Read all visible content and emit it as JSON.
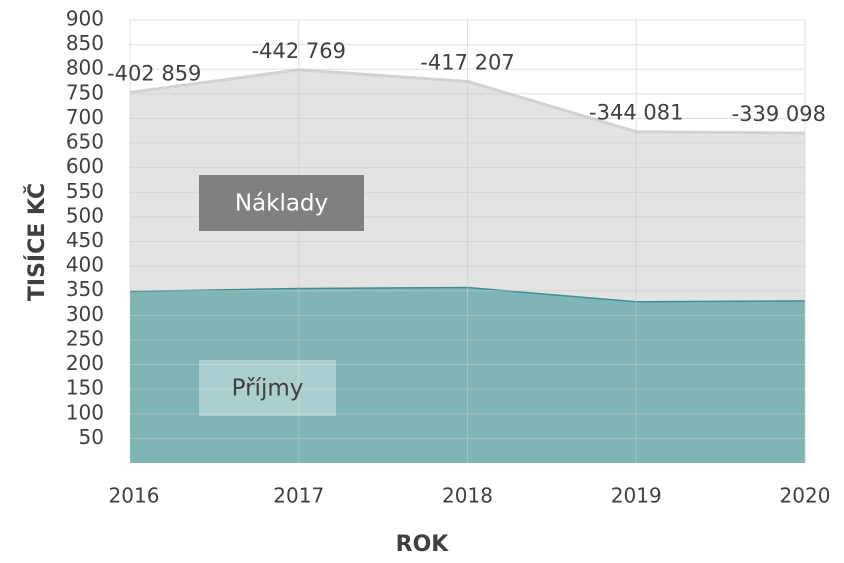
{
  "chart_data": {
    "type": "area",
    "stacked": true,
    "x_label": "ROK",
    "y_label": "TISÍCE KČ",
    "categories": [
      "2016",
      "2017",
      "2018",
      "2019",
      "2020"
    ],
    "series": [
      {
        "name": "Příjmy",
        "color": "#7fb5b5",
        "line_color": "#3f8f8f",
        "values": [
          350,
          356,
          358,
          329,
          331
        ]
      },
      {
        "name": "Náklady",
        "color": "#e3e3e3",
        "line_color": "#d2d2d2",
        "values": [
          402.859,
          442.769,
          417.207,
          344.081,
          339.098
        ]
      }
    ],
    "annotations": [
      "-402 859",
      "-442 769",
      "-417 207",
      "-344 081",
      "-339 098"
    ],
    "ylim": [
      0,
      900
    ],
    "yticks": [
      50,
      100,
      150,
      200,
      250,
      300,
      350,
      400,
      450,
      500,
      550,
      600,
      650,
      700,
      750,
      800,
      850,
      900
    ],
    "grid": true
  }
}
